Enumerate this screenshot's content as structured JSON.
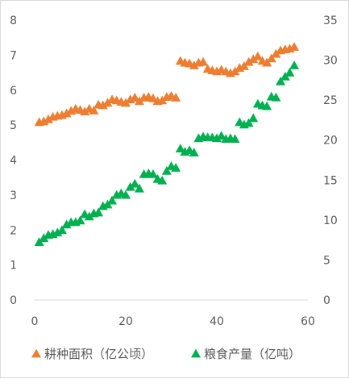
{
  "chart_data": {
    "type": "scatter",
    "x_axis": {
      "ticks": [
        0,
        20,
        40,
        60
      ],
      "range": [
        0,
        60
      ]
    },
    "y_axis_left": {
      "ticks": [
        0,
        1,
        2,
        3,
        4,
        5,
        6,
        7,
        8
      ],
      "range": [
        0,
        8
      ]
    },
    "y_axis_right": {
      "ticks": [
        0,
        5,
        10,
        15,
        20,
        25,
        30,
        35
      ],
      "range": [
        0,
        35
      ]
    },
    "grid": false,
    "legend_position": "bottom",
    "series": [
      {
        "name": "耕种面积（亿公顷）",
        "axis": "left",
        "color": "#ED7D31",
        "x": [
          1,
          2,
          3,
          4,
          5,
          6,
          7,
          8,
          9,
          10,
          11,
          12,
          13,
          14,
          15,
          16,
          17,
          18,
          19,
          20,
          21,
          22,
          23,
          24,
          25,
          26,
          27,
          28,
          29,
          30,
          31,
          32,
          33,
          34,
          35,
          36,
          37,
          38,
          39,
          40,
          41,
          42,
          43,
          44,
          45,
          46,
          47,
          48,
          49,
          50,
          51,
          52,
          53,
          54,
          55,
          56,
          57
        ],
        "y": [
          5.1,
          5.12,
          5.18,
          5.25,
          5.28,
          5.3,
          5.35,
          5.42,
          5.48,
          5.45,
          5.4,
          5.48,
          5.43,
          5.6,
          5.58,
          5.65,
          5.75,
          5.72,
          5.68,
          5.65,
          5.75,
          5.8,
          5.7,
          5.8,
          5.82,
          5.78,
          5.7,
          5.72,
          5.82,
          5.85,
          5.8,
          6.85,
          6.8,
          6.78,
          6.72,
          6.8,
          6.82,
          6.62,
          6.58,
          6.55,
          6.6,
          6.55,
          6.5,
          6.55,
          6.65,
          6.7,
          6.82,
          6.9,
          6.98,
          6.85,
          6.8,
          6.92,
          7.05,
          7.15,
          7.18,
          7.2,
          7.25
        ]
      },
      {
        "name": "粮食产量（亿吨）",
        "axis": "right",
        "color": "#00B050",
        "x": [
          1,
          2,
          3,
          4,
          5,
          6,
          7,
          8,
          9,
          10,
          11,
          12,
          13,
          14,
          15,
          16,
          17,
          18,
          19,
          20,
          21,
          22,
          23,
          24,
          25,
          26,
          27,
          28,
          29,
          30,
          31,
          32,
          33,
          34,
          35,
          36,
          37,
          38,
          39,
          40,
          41,
          42,
          43,
          44,
          45,
          46,
          47,
          48,
          49,
          50,
          51,
          52,
          53,
          54,
          55,
          56,
          57
        ],
        "y": [
          7.3,
          7.8,
          8.2,
          8.3,
          8.5,
          8.8,
          9.5,
          9.8,
          9.8,
          10.0,
          10.8,
          10.5,
          10.9,
          11.0,
          11.8,
          12.0,
          12.5,
          13.2,
          13.4,
          13.2,
          14.2,
          14.6,
          14.0,
          15.8,
          15.9,
          15.8,
          15.2,
          15.0,
          16.2,
          16.8,
          16.6,
          19.0,
          18.6,
          18.8,
          18.5,
          20.3,
          20.5,
          20.4,
          20.4,
          20.3,
          20.6,
          20.2,
          20.3,
          20.2,
          22.3,
          22.0,
          22.2,
          22.8,
          24.6,
          24.4,
          24.3,
          25.5,
          25.4,
          27.4,
          28.0,
          28.5,
          29.4
        ]
      }
    ]
  }
}
